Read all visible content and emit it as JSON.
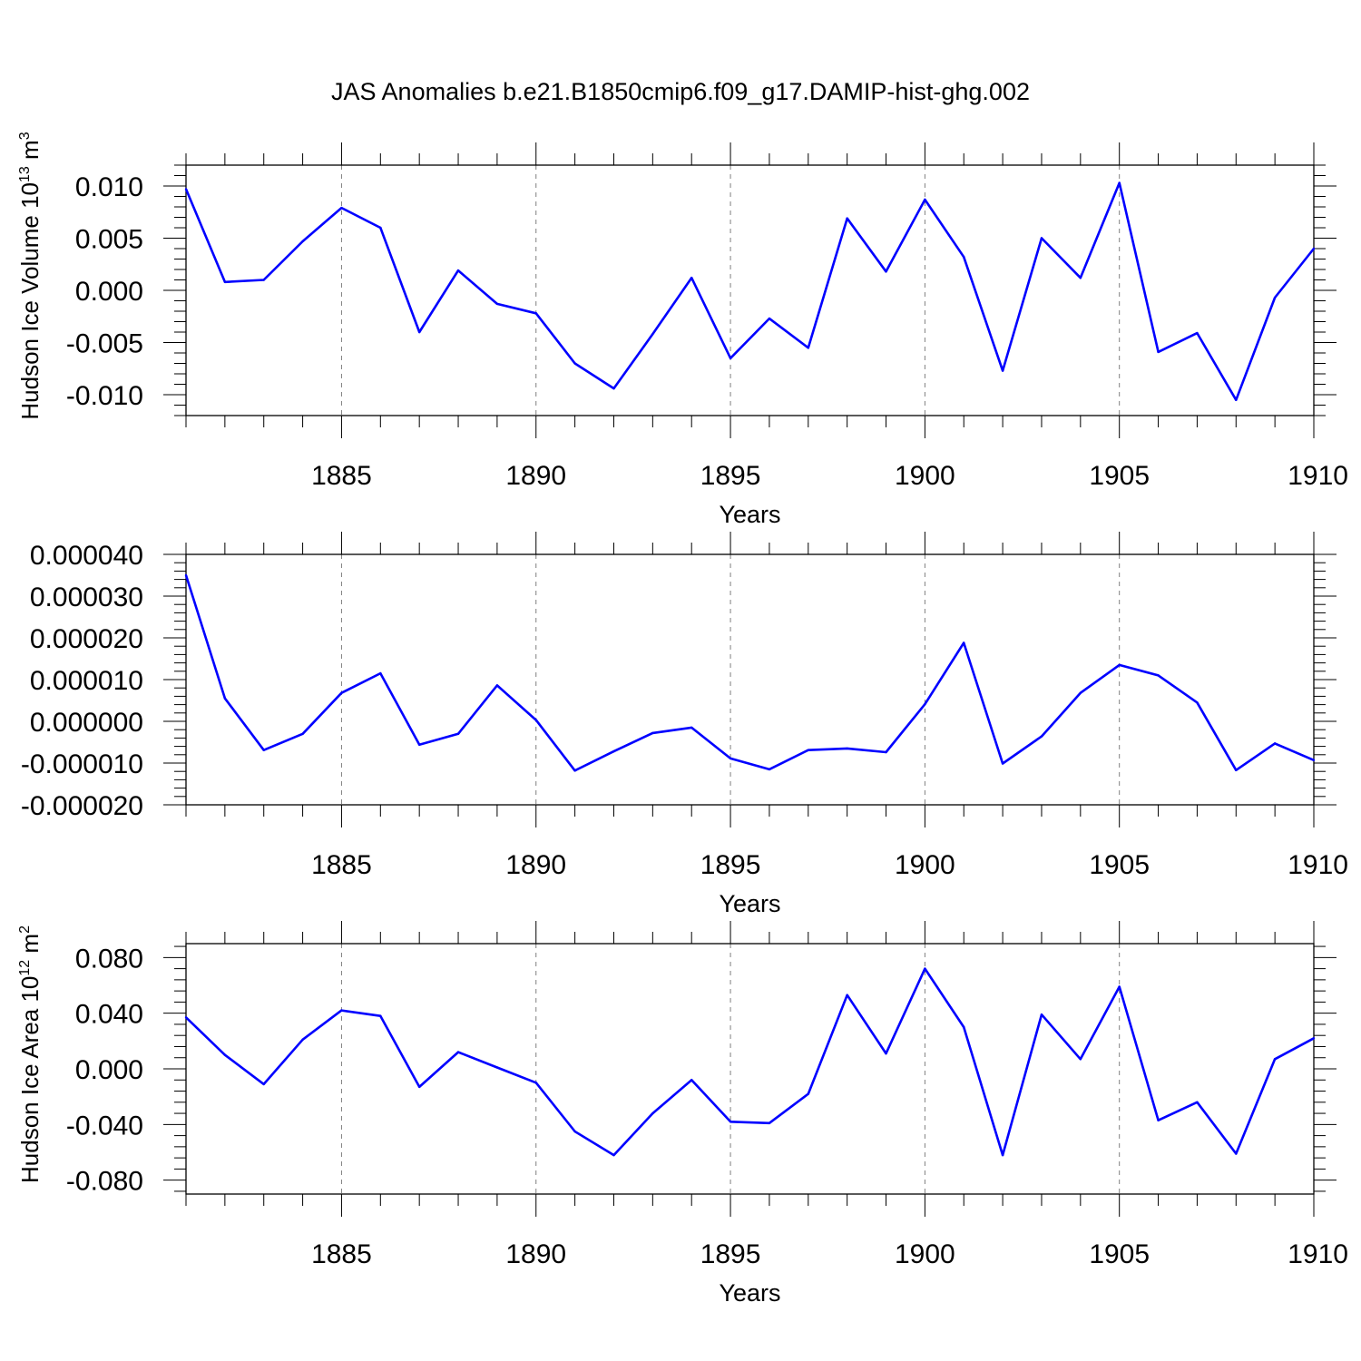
{
  "title": "JAS Anomalies b.e21.B1850cmip6.f09_g17.DAMIP-hist-ghg.002",
  "colors": {
    "line": "#0000ff",
    "axis": "#000000",
    "grid": "#808080"
  },
  "chart_data": [
    {
      "type": "line",
      "ylabel": "Hudson Ice Volume 10",
      "ylabel_sup": "13",
      "ylabel_unit": " m",
      "ylabel_unit_sup": "3",
      "xlabel": "Years",
      "xlim": [
        1881,
        1910
      ],
      "ylim": [
        -0.012,
        0.012
      ],
      "x_ticks": [
        1885,
        1890,
        1895,
        1900,
        1905,
        1910
      ],
      "x_tick_labels": [
        "1885",
        "1890",
        "1895",
        "1900",
        "1905",
        "1910"
      ],
      "y_ticks": [
        0.01,
        0.005,
        0.0,
        -0.005,
        -0.01
      ],
      "y_tick_labels": [
        "0.010",
        "0.005",
        "0.000",
        "-0.005",
        "-0.010"
      ],
      "grid": "vertical dashed at major x ticks",
      "x": [
        1881,
        1882,
        1883,
        1884,
        1885,
        1886,
        1887,
        1888,
        1889,
        1890,
        1891,
        1892,
        1893,
        1894,
        1895,
        1896,
        1897,
        1898,
        1899,
        1900,
        1901,
        1902,
        1903,
        1904,
        1905,
        1906,
        1907,
        1908,
        1909,
        1910
      ],
      "values": [
        0.0097,
        0.0008,
        0.001,
        0.0047,
        0.0079,
        0.006,
        -0.004,
        0.0019,
        -0.0013,
        -0.0022,
        -0.007,
        -0.0094,
        -0.0042,
        0.0012,
        -0.0065,
        -0.0027,
        -0.0055,
        0.0069,
        0.0018,
        0.0087,
        0.0032,
        -0.0077,
        0.005,
        0.0012,
        0.0103,
        -0.0059,
        -0.0041,
        -0.0105,
        -0.0007,
        0.004
      ]
    },
    {
      "type": "line",
      "ylabel": "",
      "xlabel": "Years",
      "xlim": [
        1881,
        1910
      ],
      "ylim": [
        -2e-05,
        4e-05
      ],
      "x_ticks": [
        1885,
        1890,
        1895,
        1900,
        1905,
        1910
      ],
      "x_tick_labels": [
        "1885",
        "1890",
        "1895",
        "1900",
        "1905",
        "1910"
      ],
      "y_ticks": [
        4e-05,
        3e-05,
        2e-05,
        1e-05,
        0.0,
        -1e-05,
        -2e-05
      ],
      "y_tick_labels": [
        "0.000040",
        "0.000030",
        "0.000020",
        "0.000010",
        "0.000000",
        "-0.000010",
        "-0.000020"
      ],
      "grid": "vertical dashed at major x ticks",
      "x": [
        1881,
        1882,
        1883,
        1884,
        1885,
        1886,
        1887,
        1888,
        1889,
        1890,
        1891,
        1892,
        1893,
        1894,
        1895,
        1896,
        1897,
        1898,
        1899,
        1900,
        1901,
        1902,
        1903,
        1904,
        1905,
        1906,
        1907,
        1908,
        1909,
        1910
      ],
      "values": [
        3.5e-05,
        5.5e-06,
        -6.9e-06,
        -3e-06,
        6.8e-06,
        1.15e-05,
        -5.6e-06,
        -3e-06,
        8.6e-06,
        3e-07,
        -1.18e-05,
        -7.2e-06,
        -2.8e-06,
        -1.5e-06,
        -8.9e-06,
        -1.15e-05,
        -6.9e-06,
        -6.5e-06,
        -7.4e-06,
        4.1e-06,
        1.88e-05,
        -1.01e-05,
        -3.6e-06,
        6.8e-06,
        1.35e-05,
        1.1e-05,
        4.5e-06,
        -1.17e-05,
        -5.3e-06,
        -9.3e-06
      ]
    },
    {
      "type": "line",
      "ylabel": "Hudson Ice Area 10",
      "ylabel_sup": "12",
      "ylabel_unit": " m",
      "ylabel_unit_sup": "2",
      "xlabel": "Years",
      "xlim": [
        1881,
        1910
      ],
      "ylim": [
        -0.09,
        0.09
      ],
      "x_ticks": [
        1885,
        1890,
        1895,
        1900,
        1905,
        1910
      ],
      "x_tick_labels": [
        "1885",
        "1890",
        "1895",
        "1900",
        "1905",
        "1910"
      ],
      "y_ticks": [
        0.08,
        0.04,
        0.0,
        -0.04,
        -0.08
      ],
      "y_tick_labels": [
        "0.080",
        "0.040",
        "0.000",
        "-0.040",
        "-0.080"
      ],
      "grid": "vertical dashed at major x ticks",
      "x": [
        1881,
        1882,
        1883,
        1884,
        1885,
        1886,
        1887,
        1888,
        1889,
        1890,
        1891,
        1892,
        1893,
        1894,
        1895,
        1896,
        1897,
        1898,
        1899,
        1900,
        1901,
        1902,
        1903,
        1904,
        1905,
        1906,
        1907,
        1908,
        1909,
        1910
      ],
      "values": [
        0.037,
        0.01,
        -0.011,
        0.021,
        0.042,
        0.038,
        -0.013,
        0.012,
        0.001,
        -0.01,
        -0.045,
        -0.062,
        -0.032,
        -0.008,
        -0.038,
        -0.039,
        -0.018,
        0.053,
        0.011,
        0.072,
        0.03,
        -0.062,
        0.039,
        0.007,
        0.059,
        -0.037,
        -0.024,
        -0.061,
        0.007,
        0.022
      ]
    }
  ]
}
